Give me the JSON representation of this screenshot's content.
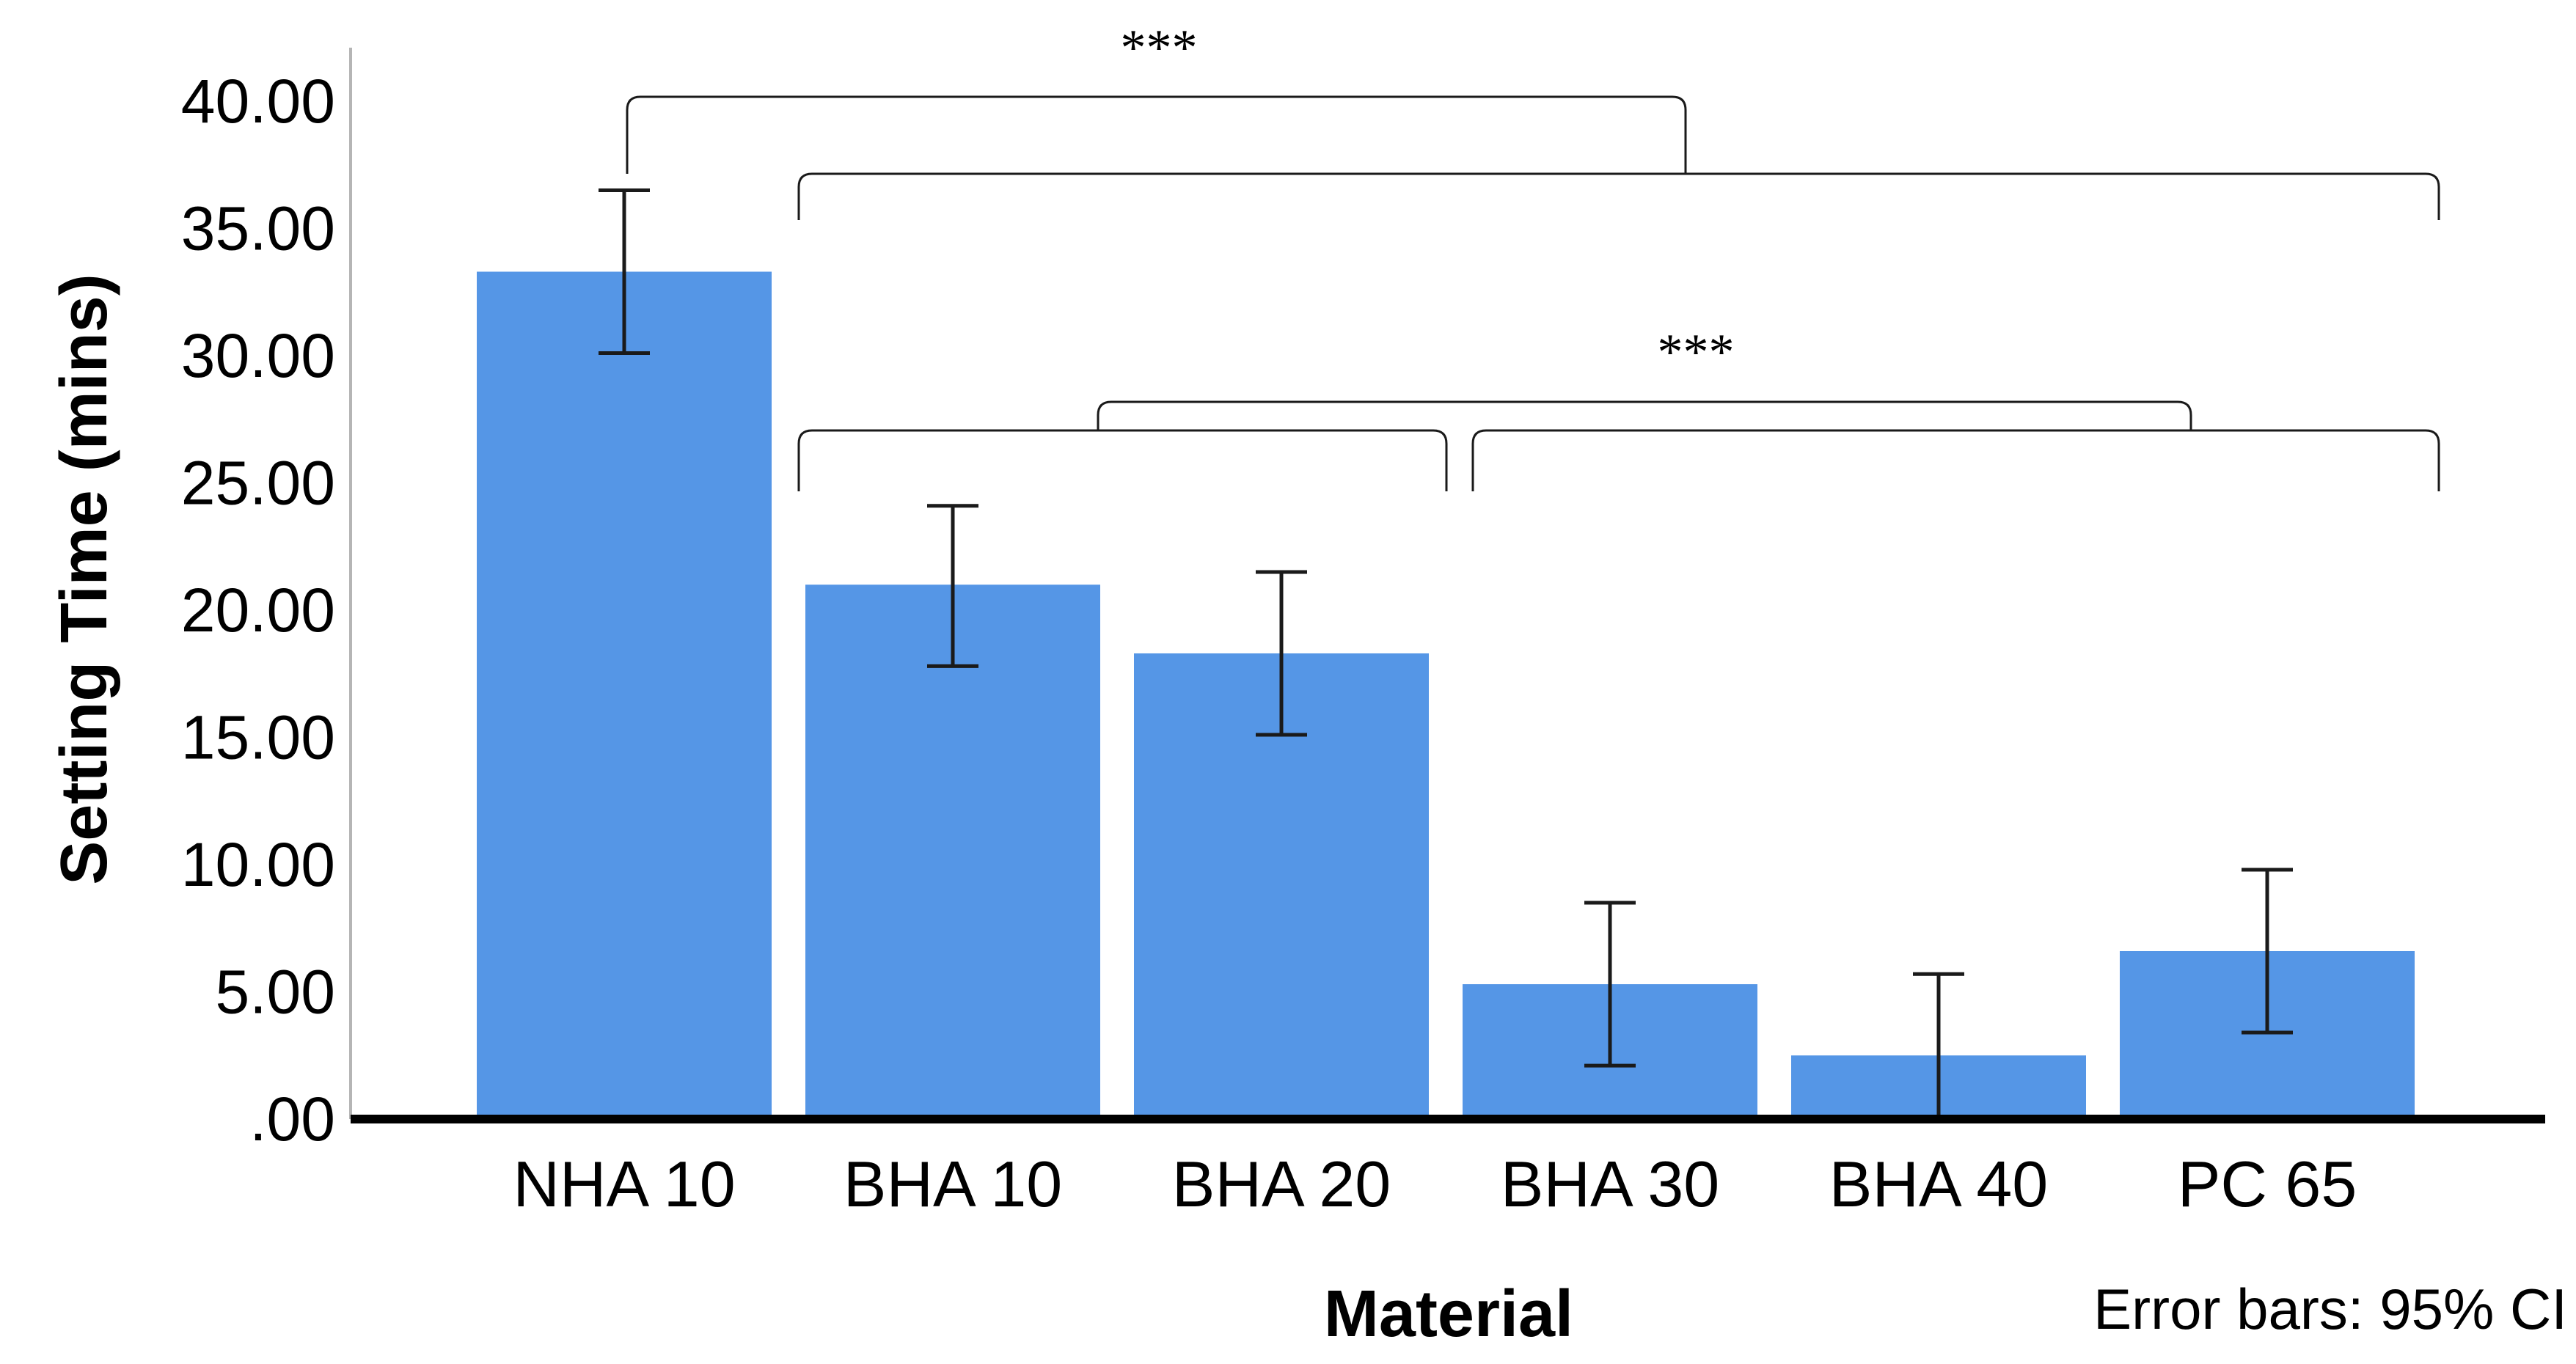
{
  "chart_data": {
    "type": "bar",
    "xlabel": "Material",
    "ylabel": "Setting Time (mins)",
    "categories": [
      "NHA 10",
      "BHA 10",
      "BHA 20",
      "BHA 30",
      "BHA 40",
      "PC 65"
    ],
    "values": [
      33.3,
      21.0,
      18.3,
      5.3,
      2.5,
      6.6
    ],
    "ci_low": [
      30.1,
      17.8,
      15.1,
      2.1,
      0.0,
      3.4
    ],
    "ci_high": [
      36.5,
      24.1,
      21.5,
      8.5,
      5.7,
      9.8
    ],
    "ylim": [
      0,
      42
    ],
    "yticks": [
      0,
      5,
      10,
      15,
      20,
      25,
      30,
      35,
      40
    ],
    "ytick_labels": [
      ".00",
      "5.00",
      "10.00",
      "15.00",
      "20.00",
      "25.00",
      "30.00",
      "35.00",
      "40.00"
    ],
    "bar_color": "#5596E6",
    "error_bar_note": "Error bars: 95% CI",
    "significance": [
      {
        "label": "***",
        "left_group": [
          "NHA 10"
        ],
        "right_group": [
          "BHA 10",
          "BHA 20",
          "BHA 30",
          "BHA 40",
          "PC 65"
        ]
      },
      {
        "label": "***",
        "left_group": [
          "BHA 10",
          "BHA 20"
        ],
        "right_group": [
          "BHA 30",
          "BHA 40",
          "PC 65"
        ]
      }
    ]
  }
}
